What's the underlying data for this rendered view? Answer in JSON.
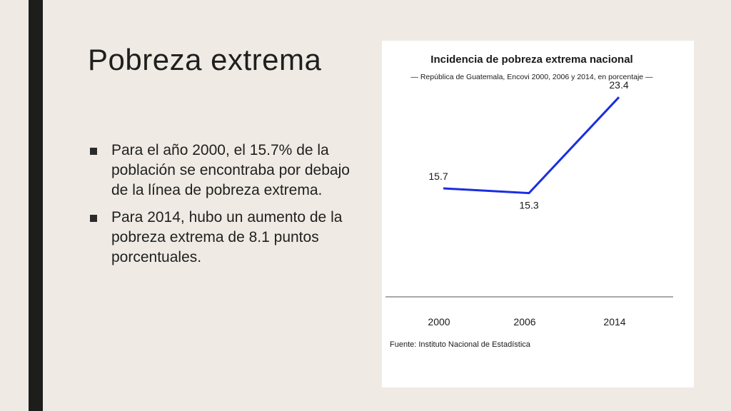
{
  "slide": {
    "title": "Pobreza extrema",
    "bullets": [
      "Para el año 2000, el 15.7% de la población se encontraba por debajo de la línea de pobreza extrema.",
      "Para 2014, hubo un aumento de la pobreza extrema de 8.1 puntos porcentuales."
    ]
  },
  "chart_data": {
    "type": "line",
    "title": "Incidencia de pobreza extrema nacional",
    "subtitle": "— República de Guatemala, Encovi 2000, 2006 y 2014, en porcentaje —",
    "source": "Fuente: Instituto Nacional de Estadística",
    "categories": [
      "2000",
      "2006",
      "2014"
    ],
    "series": [
      {
        "values": [
          15.7,
          15.3,
          23.4
        ],
        "labels": [
          "15.7",
          "15.3",
          "23.4"
        ]
      }
    ],
    "ylim": [
      0,
      25
    ],
    "line_color": "#1a2ee0",
    "grid": false
  }
}
